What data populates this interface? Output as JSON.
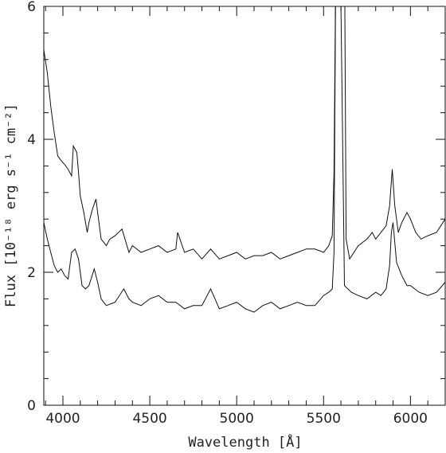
{
  "chart_data": {
    "type": "line",
    "title": "",
    "xlabel": "Wavelength [Å]",
    "ylabel": "Flux [10⁻¹⁸ erg s⁻¹ cm⁻²]",
    "xlim": [
      3890,
      6200
    ],
    "ylim": [
      0,
      6
    ],
    "x_ticks": [
      4000,
      4500,
      5000,
      5500,
      6000
    ],
    "x_minor_step": 100,
    "y_ticks": [
      0,
      2,
      4,
      6
    ],
    "y_minor_step": 0.4,
    "grid": false,
    "series": [
      {
        "x": [
          3890,
          3910,
          3930,
          3950,
          3970,
          3990,
          4010,
          4030,
          4050,
          4060,
          4070,
          4080,
          4090,
          4100,
          4120,
          4140,
          4150,
          4170,
          4190,
          4200,
          4220,
          4250,
          4270,
          4300,
          4340,
          4380,
          4400,
          4450,
          4500,
          4550,
          4600,
          4650,
          4660,
          4700,
          4750,
          4800,
          4850,
          4900,
          4950,
          5000,
          5050,
          5100,
          5150,
          5200,
          5250,
          5300,
          5350,
          5400,
          5450,
          5500,
          5530,
          5550,
          5560,
          5570,
          5580,
          5590,
          5600,
          5610,
          5620,
          5630,
          5650,
          5700,
          5750,
          5780,
          5800,
          5830,
          5860,
          5880,
          5895,
          5910,
          5930,
          5950,
          5980,
          6000,
          6030,
          6060,
          6100,
          6150,
          6200
        ],
        "y": [
          5.35,
          5.0,
          4.5,
          4.1,
          3.75,
          3.68,
          3.62,
          3.55,
          3.45,
          3.9,
          3.85,
          3.8,
          3.5,
          3.15,
          2.9,
          2.6,
          2.75,
          2.95,
          3.1,
          2.9,
          2.5,
          2.4,
          2.5,
          2.55,
          2.65,
          2.3,
          2.4,
          2.3,
          2.35,
          2.4,
          2.3,
          2.35,
          2.6,
          2.3,
          2.35,
          2.2,
          2.35,
          2.2,
          2.25,
          2.3,
          2.2,
          2.25,
          2.25,
          2.3,
          2.2,
          2.25,
          2.3,
          2.35,
          2.35,
          2.3,
          2.4,
          2.55,
          3.5,
          6.5,
          7.0,
          6.5,
          6.0,
          6.5,
          7.0,
          2.5,
          2.2,
          2.4,
          2.5,
          2.6,
          2.5,
          2.6,
          2.7,
          3.0,
          3.55,
          3.0,
          2.6,
          2.75,
          2.9,
          2.8,
          2.6,
          2.5,
          2.55,
          2.6,
          2.8
        ]
      },
      {
        "x": [
          3890,
          3910,
          3930,
          3950,
          3970,
          3990,
          4010,
          4030,
          4050,
          4070,
          4090,
          4110,
          4130,
          4150,
          4180,
          4200,
          4220,
          4250,
          4300,
          4350,
          4380,
          4400,
          4450,
          4500,
          4550,
          4600,
          4650,
          4700,
          4750,
          4800,
          4850,
          4900,
          4950,
          5000,
          5050,
          5100,
          5150,
          5200,
          5250,
          5300,
          5350,
          5400,
          5450,
          5500,
          5530,
          5550,
          5560,
          5570,
          5575,
          5580,
          5600,
          5620,
          5640,
          5660,
          5700,
          5750,
          5800,
          5830,
          5860,
          5880,
          5890,
          5900,
          5920,
          5950,
          5980,
          6000,
          6050,
          6100,
          6150,
          6200
        ],
        "y": [
          2.75,
          2.5,
          2.3,
          2.1,
          2.0,
          2.05,
          1.95,
          1.9,
          2.3,
          2.35,
          2.2,
          1.8,
          1.75,
          1.8,
          2.05,
          1.85,
          1.6,
          1.5,
          1.55,
          1.75,
          1.6,
          1.55,
          1.5,
          1.6,
          1.65,
          1.55,
          1.55,
          1.45,
          1.5,
          1.5,
          1.75,
          1.45,
          1.5,
          1.55,
          1.45,
          1.4,
          1.5,
          1.55,
          1.45,
          1.5,
          1.55,
          1.5,
          1.5,
          1.65,
          1.7,
          1.75,
          2.3,
          6.5,
          7.0,
          6.5,
          6.0,
          1.8,
          1.75,
          1.7,
          1.65,
          1.6,
          1.7,
          1.65,
          1.75,
          2.1,
          2.6,
          2.75,
          2.15,
          1.95,
          1.8,
          1.8,
          1.7,
          1.65,
          1.7,
          1.85
        ]
      }
    ]
  }
}
